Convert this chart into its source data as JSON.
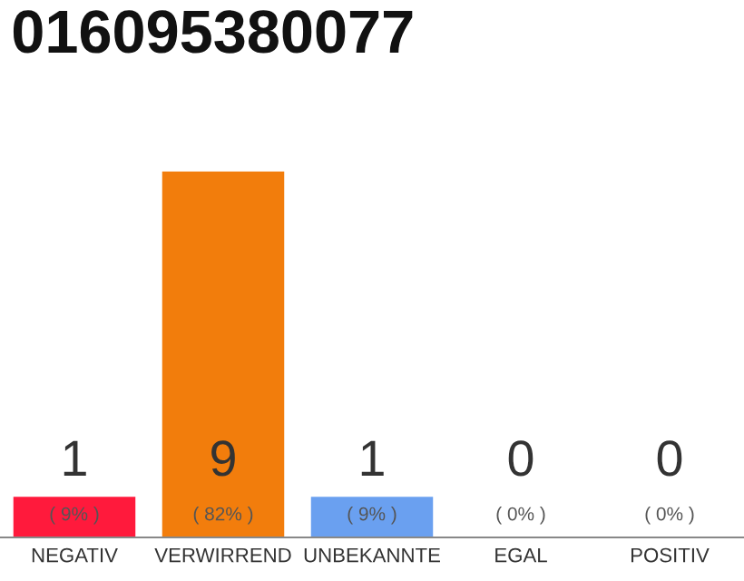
{
  "chart_data": {
    "type": "bar",
    "title": "016095380077",
    "categories": [
      "NEGATIV",
      "VERWIRREND",
      "UNBEKANNTE",
      "EGAL",
      "POSITIV"
    ],
    "values": [
      1,
      9,
      1,
      0,
      0
    ],
    "colors": [
      "#ff1a3c",
      "#f27d0c",
      "#6aa0f0",
      "#c8c8c8",
      "#c8c8c8"
    ],
    "ylim": [
      0,
      9
    ],
    "data_labels": true,
    "tick_labels": "x",
    "grid": false,
    "legend": false,
    "annotations": [
      "( 9% )",
      "( 82% )",
      "( 9% )",
      "( 0% )",
      "( 0% )"
    ]
  }
}
